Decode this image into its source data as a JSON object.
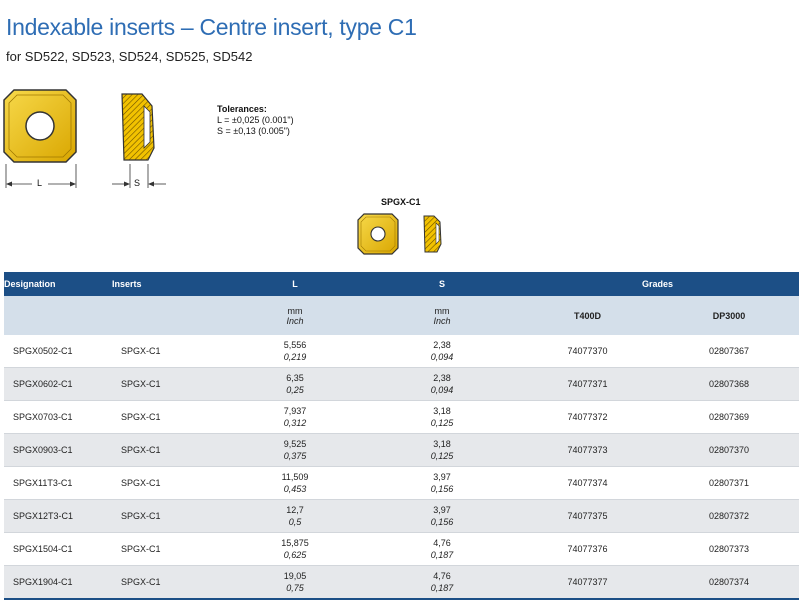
{
  "header": {
    "title": "Indexable inserts – Centre insert, type C1",
    "subtitle": "for SD522, SD523, SD524, SD525, SD542"
  },
  "tolerances": {
    "heading": "Tolerances:",
    "l": "L = ±0,025 (0.001\")",
    "s": "S = ±0,13 (0.005\")"
  },
  "diagram": {
    "label_l": "L",
    "label_s": "S",
    "insert_name": "SPGX-C1"
  },
  "table": {
    "headers": {
      "designation": "Designation",
      "inserts": "Inserts",
      "l": "L",
      "s": "S",
      "grades": "Grades"
    },
    "subheaders": {
      "l_mm": "mm",
      "l_inch": "Inch",
      "s_mm": "mm",
      "s_inch": "Inch",
      "grade1": "T400D",
      "grade2": "DP3000"
    },
    "rows": [
      {
        "designation": "SPGX0502-C1",
        "insert": "SPGX-C1",
        "l_mm": "5,556",
        "l_in": "0,219",
        "s_mm": "2,38",
        "s_in": "0,094",
        "g1": "74077370",
        "g2": "02807367"
      },
      {
        "designation": "SPGX0602-C1",
        "insert": "SPGX-C1",
        "l_mm": "6,35",
        "l_in": "0,25",
        "s_mm": "2,38",
        "s_in": "0,094",
        "g1": "74077371",
        "g2": "02807368"
      },
      {
        "designation": "SPGX0703-C1",
        "insert": "SPGX-C1",
        "l_mm": "7,937",
        "l_in": "0,312",
        "s_mm": "3,18",
        "s_in": "0,125",
        "g1": "74077372",
        "g2": "02807369"
      },
      {
        "designation": "SPGX0903-C1",
        "insert": "SPGX-C1",
        "l_mm": "9,525",
        "l_in": "0,375",
        "s_mm": "3,18",
        "s_in": "0,125",
        "g1": "74077373",
        "g2": "02807370"
      },
      {
        "designation": "SPGX11T3-C1",
        "insert": "SPGX-C1",
        "l_mm": "11,509",
        "l_in": "0,453",
        "s_mm": "3,97",
        "s_in": "0,156",
        "g1": "74077374",
        "g2": "02807371"
      },
      {
        "designation": "SPGX12T3-C1",
        "insert": "SPGX-C1",
        "l_mm": "12,7",
        "l_in": "0,5",
        "s_mm": "3,97",
        "s_in": "0,156",
        "g1": "74077375",
        "g2": "02807372"
      },
      {
        "designation": "SPGX1504-C1",
        "insert": "SPGX-C1",
        "l_mm": "15,875",
        "l_in": "0,625",
        "s_mm": "4,76",
        "s_in": "0,187",
        "g1": "74077376",
        "g2": "02807373"
      },
      {
        "designation": "SPGX1904-C1",
        "insert": "SPGX-C1",
        "l_mm": "19,05",
        "l_in": "0,75",
        "s_mm": "4,76",
        "s_in": "0,187",
        "g1": "74077377",
        "g2": "02807374"
      }
    ]
  },
  "colors": {
    "title": "#2e6db4",
    "header_bg": "#1c4f86",
    "subheader_bg": "#d4dfea",
    "insert_yellow": "#f2c200"
  }
}
